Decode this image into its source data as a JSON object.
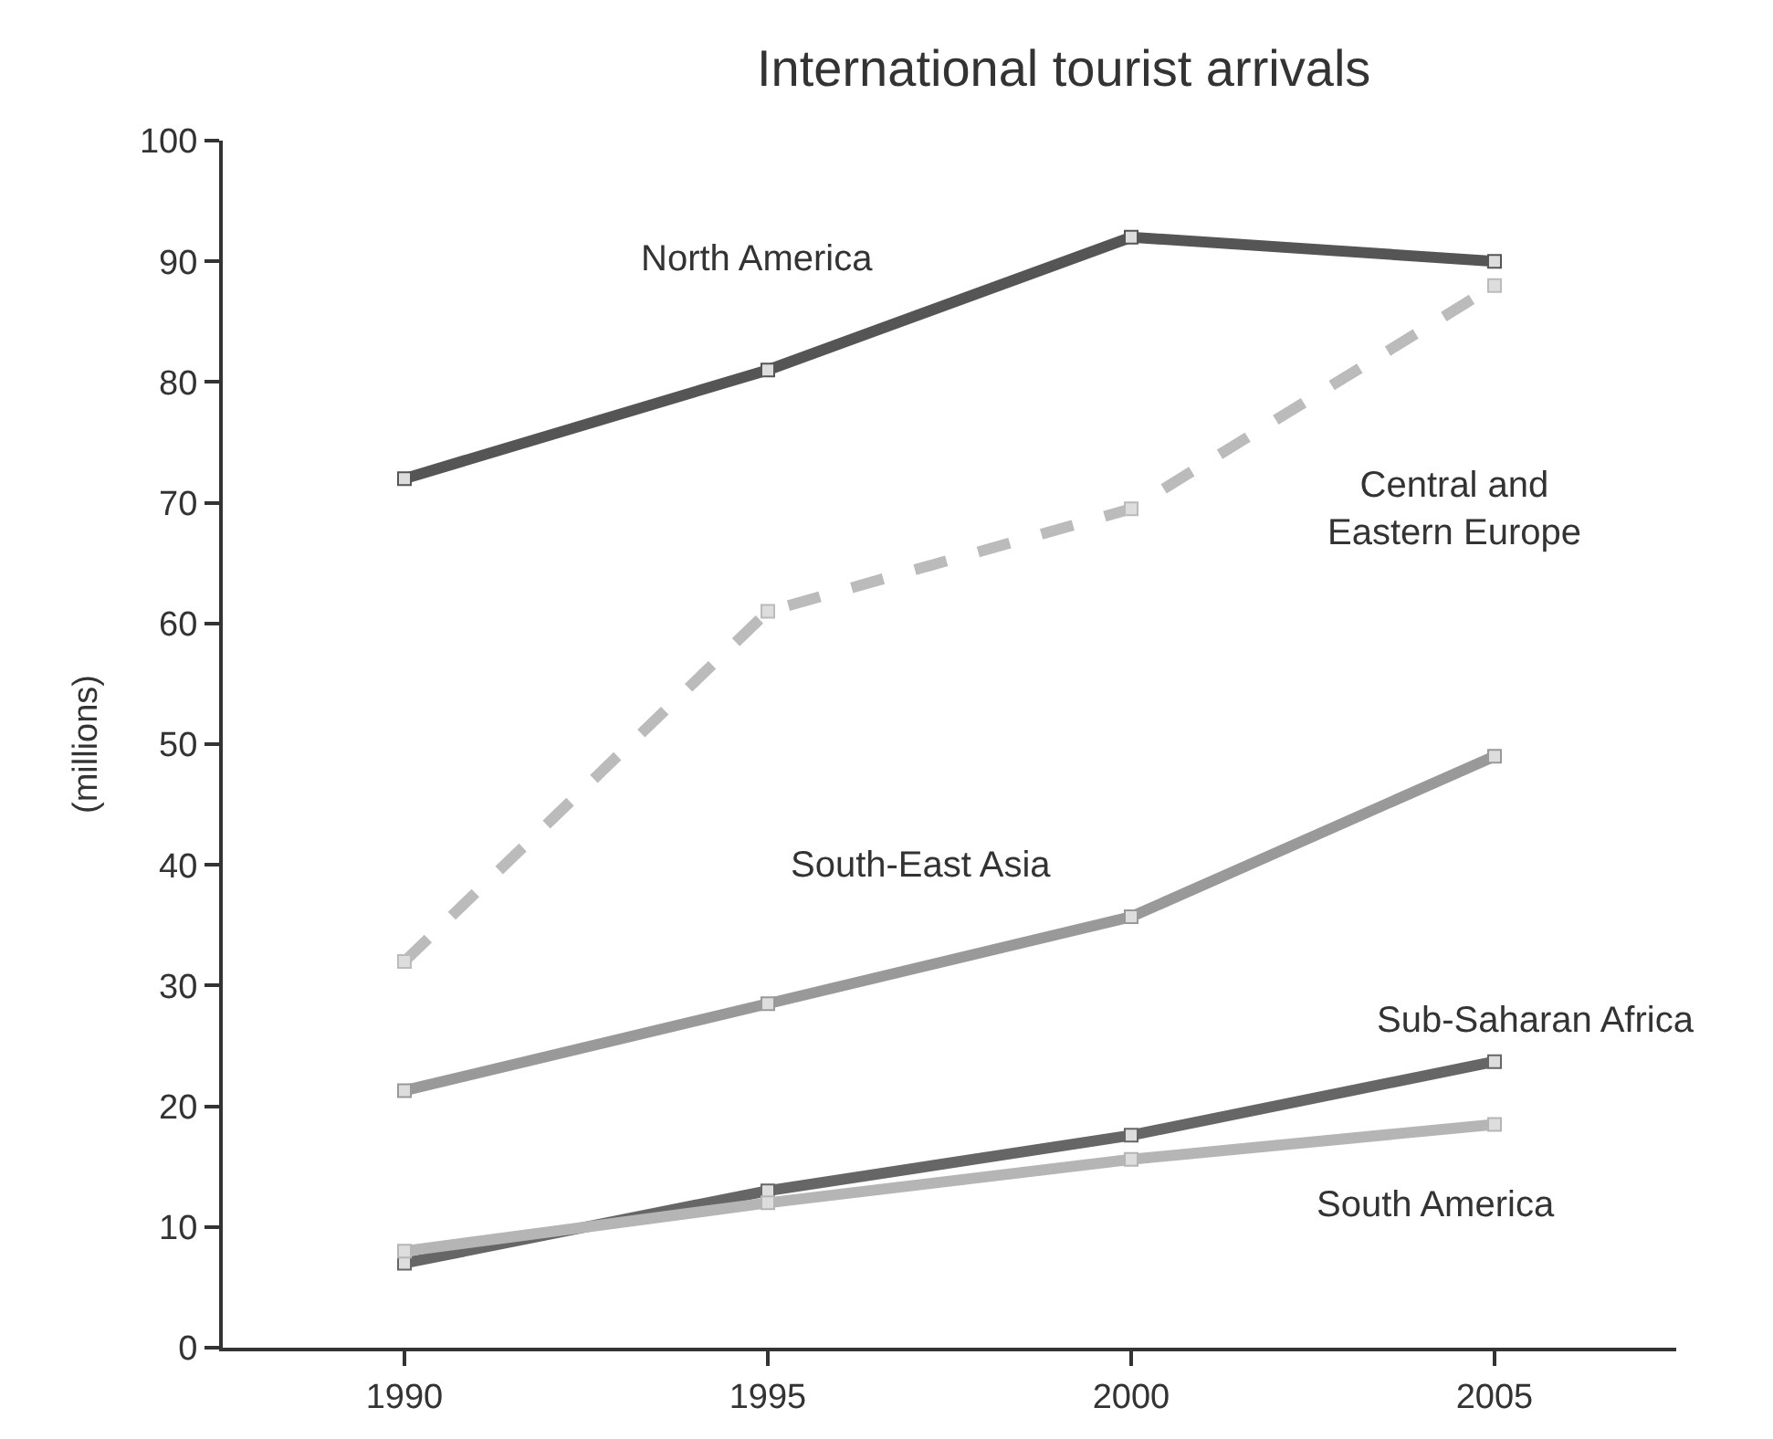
{
  "chart_data": {
    "type": "line",
    "title": "International tourist arrivals",
    "ylabel": "(millions)",
    "x": [
      1990,
      1995,
      2000,
      2005
    ],
    "xlim": [
      1987.5,
      2007.5
    ],
    "xticks": [
      1990,
      1995,
      2000,
      2005
    ],
    "ylim": [
      0,
      100
    ],
    "yticks": [
      0,
      10,
      20,
      30,
      40,
      50,
      60,
      70,
      80,
      90,
      100
    ],
    "legend": false,
    "marker": "square",
    "series": [
      {
        "name": "North America",
        "color": "#555555",
        "line_style": "solid",
        "values": [
          72,
          81,
          92,
          90
        ]
      },
      {
        "name": "Central and\nEastern Europe",
        "color": "#bbbbbb",
        "line_style": "dashed",
        "values": [
          32,
          61,
          69.5,
          88
        ]
      },
      {
        "name": "South-East Asia",
        "color": "#999999",
        "line_style": "solid",
        "values": [
          21.3,
          28.5,
          35.7,
          49
        ]
      },
      {
        "name": "Sub-Saharan Africa",
        "color": "#666666",
        "line_style": "solid",
        "values": [
          7,
          13,
          17.6,
          23.7
        ]
      },
      {
        "name": "South America",
        "color": "#b5b5b5",
        "line_style": "solid",
        "values": [
          8,
          12,
          15.6,
          18.5
        ]
      }
    ]
  }
}
